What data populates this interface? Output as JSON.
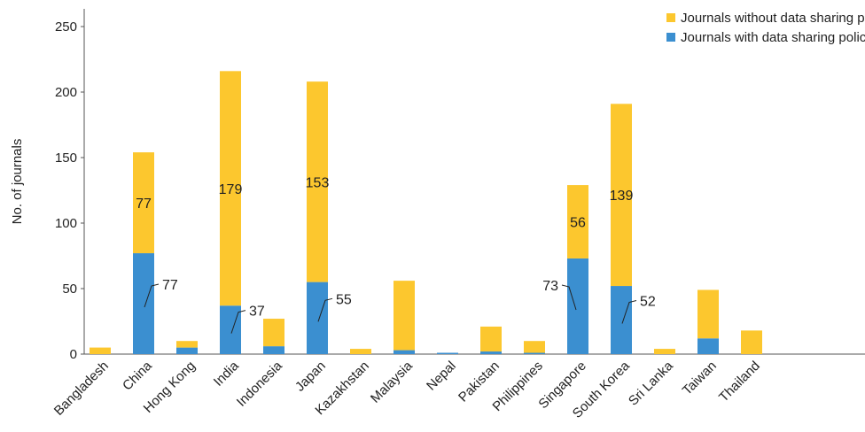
{
  "chart_data": {
    "type": "bar",
    "stacked": true,
    "categories": [
      "Bangladesh",
      "China",
      "Hong Kong",
      "India",
      "Indonesia",
      "Japan",
      "Kazakhstan",
      "Malaysia",
      "Nepal",
      "Pakistan",
      "Philippines",
      "Singapore",
      "South Korea",
      "Sri Lanka",
      "Taiwan",
      "Thailand"
    ],
    "series": [
      {
        "name": "Journals with data sharing policy",
        "color": "#3b8fd0",
        "values": [
          0,
          77,
          5,
          37,
          6,
          55,
          0,
          3,
          1,
          2,
          1,
          73,
          52,
          0,
          12,
          0
        ]
      },
      {
        "name": "Journals without data sharing policy",
        "color": "#fcc72e",
        "values": [
          5,
          77,
          5,
          179,
          21,
          153,
          4,
          53,
          0,
          19,
          9,
          56,
          139,
          4,
          37,
          18
        ]
      }
    ],
    "ylabel": "No. of journals",
    "ylim": [
      0,
      250
    ],
    "yticks": [
      "0",
      "50",
      "100",
      "150",
      "200",
      "250"
    ],
    "legend_position": "top-right",
    "legend_order": [
      "Journals without data sharing policy",
      "Journals with data sharing policy"
    ],
    "annotations": [
      {
        "category": "China",
        "series": "without",
        "text": "77"
      },
      {
        "category": "India",
        "series": "without",
        "text": "179"
      },
      {
        "category": "Japan",
        "series": "without",
        "text": "153"
      },
      {
        "category": "Singapore",
        "series": "without",
        "text": "56"
      },
      {
        "category": "South Korea",
        "series": "without",
        "text": "139"
      },
      {
        "category": "China",
        "series": "with",
        "text": "77",
        "callout": "right"
      },
      {
        "category": "India",
        "series": "with",
        "text": "37",
        "callout": "right"
      },
      {
        "category": "Japan",
        "series": "with",
        "text": "55",
        "callout": "right"
      },
      {
        "category": "Singapore",
        "series": "with",
        "text": "73",
        "callout": "left"
      },
      {
        "category": "South Korea",
        "series": "with",
        "text": "52",
        "callout": "right"
      }
    ]
  }
}
